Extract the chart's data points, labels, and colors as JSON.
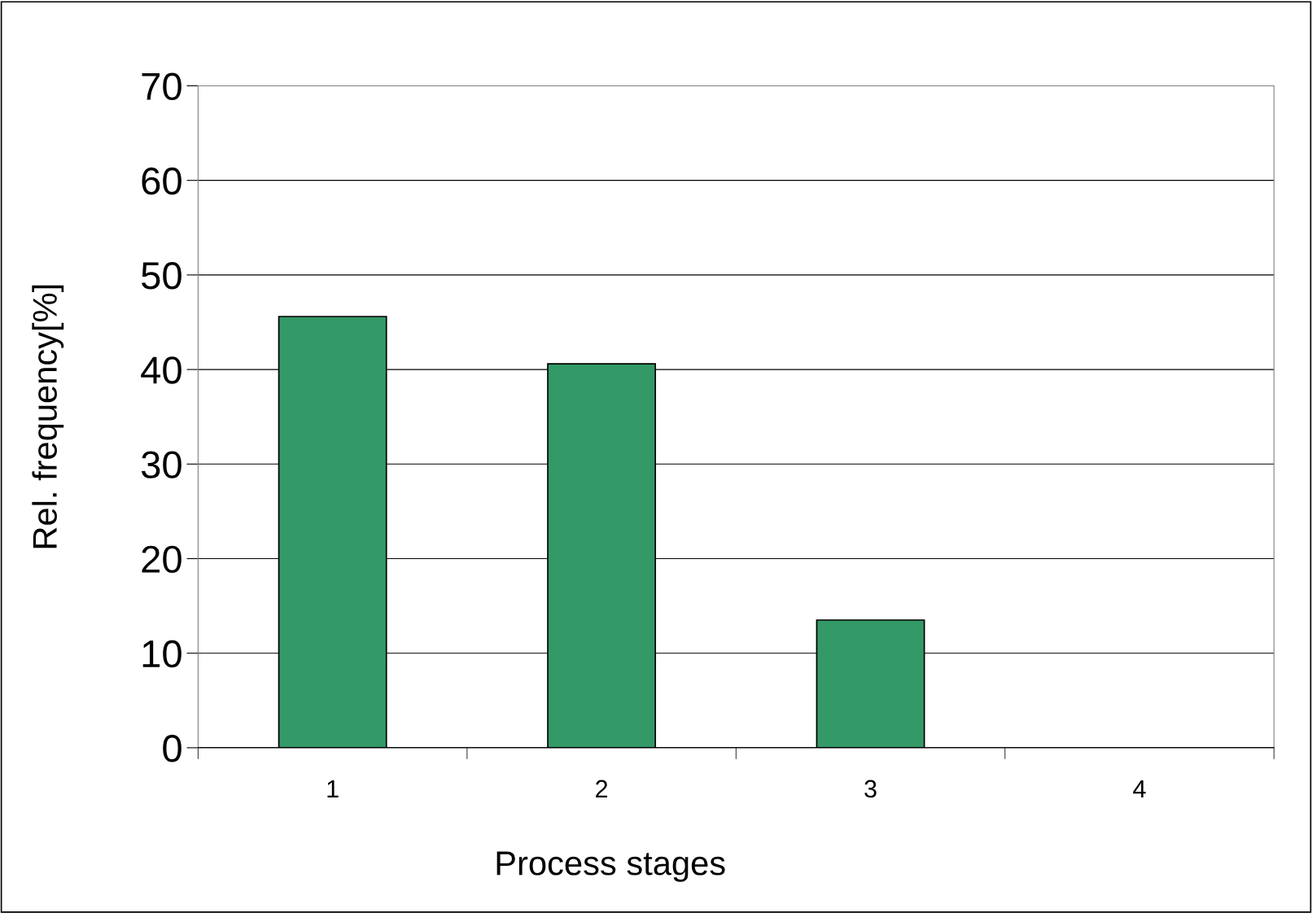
{
  "chart_data": {
    "type": "bar",
    "xlabel": "Process stages",
    "ylabel": "Rel. frequency[%]",
    "categories": [
      "1",
      "2",
      "3",
      "4"
    ],
    "values": [
      45.6,
      40.6,
      13.5,
      0
    ],
    "color": "#339966",
    "ylim": [
      0,
      70
    ],
    "yticks": [
      0,
      10,
      20,
      30,
      40,
      50,
      60,
      70
    ],
    "grid": "y",
    "legend": false
  }
}
